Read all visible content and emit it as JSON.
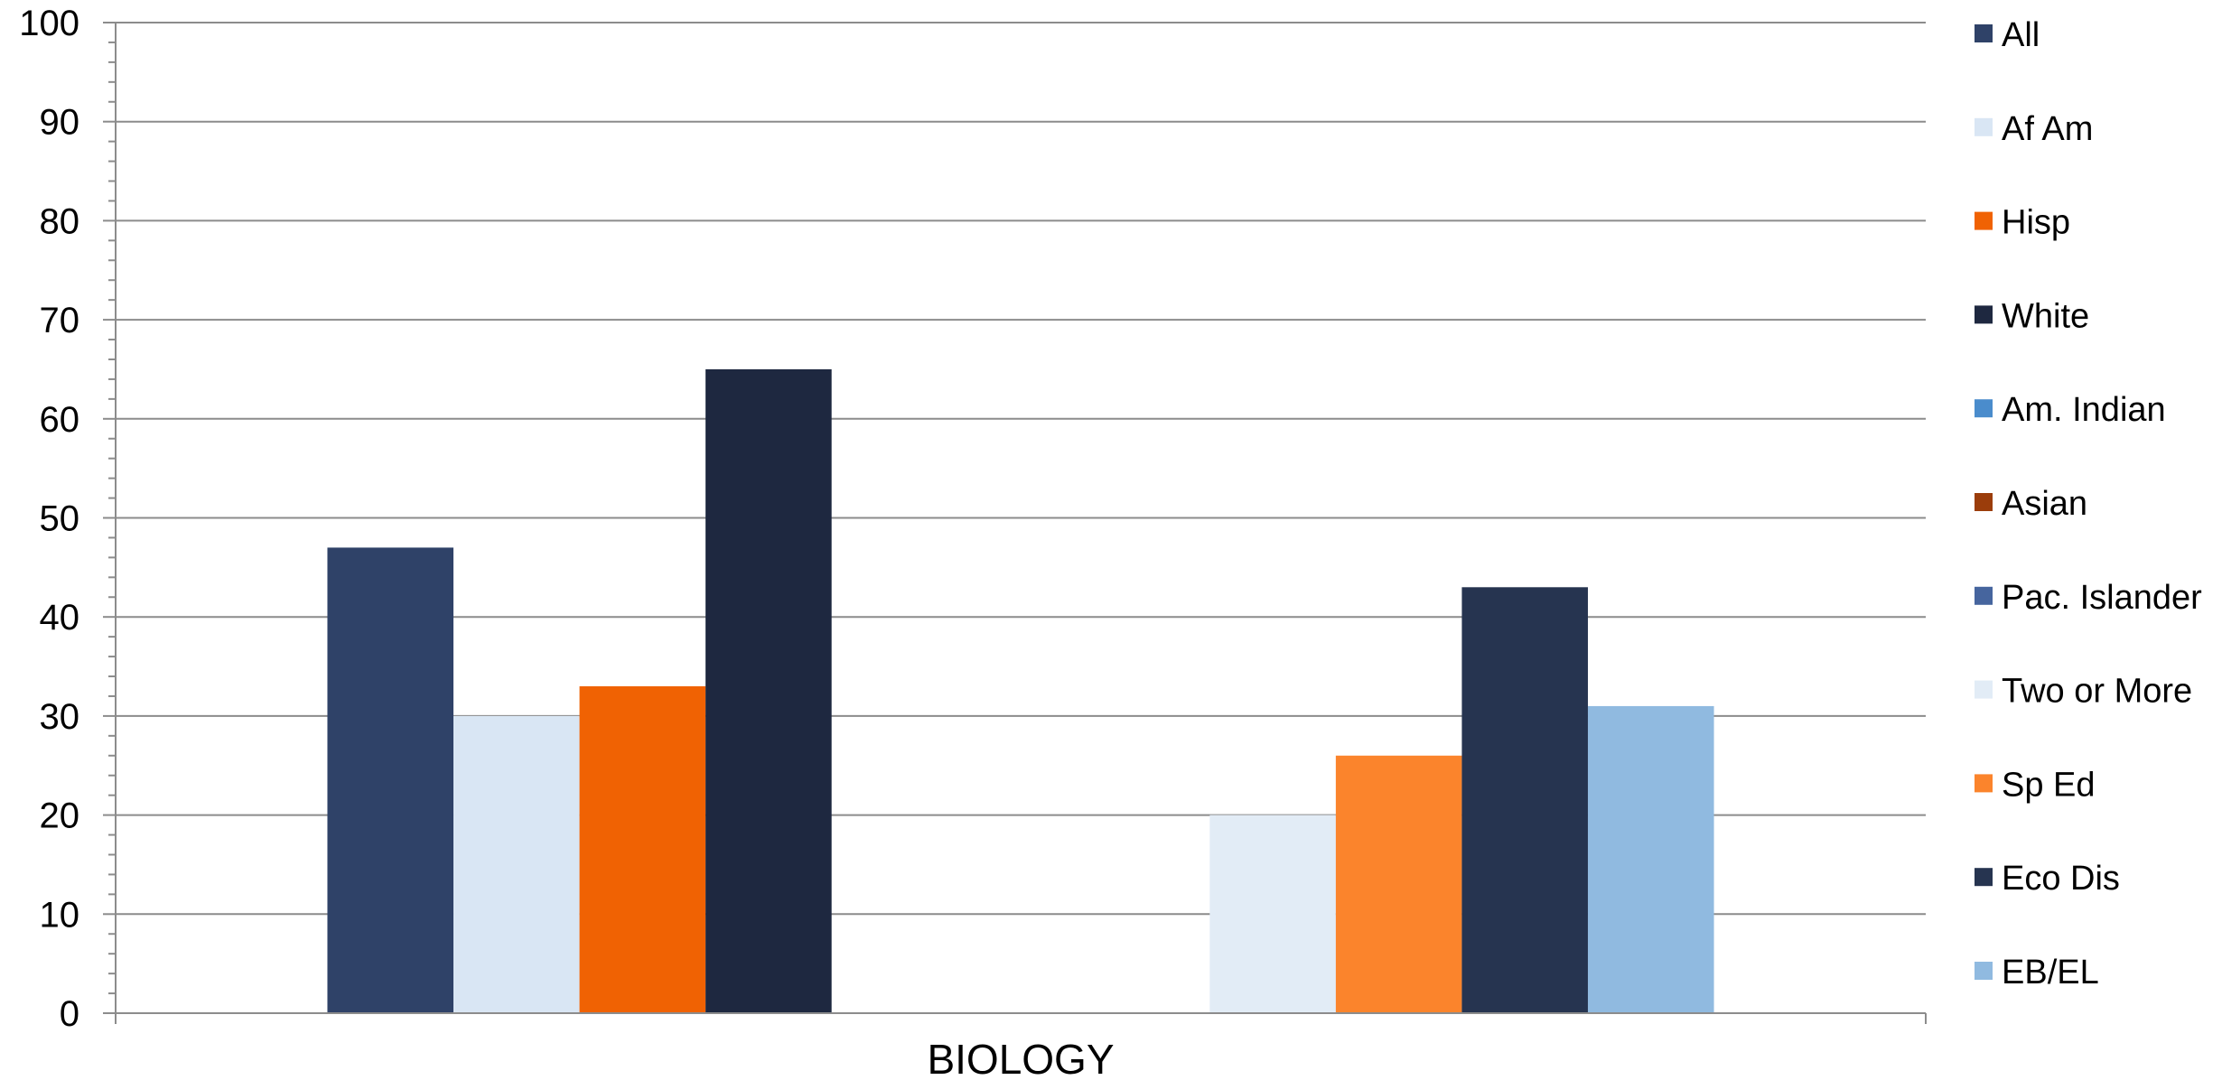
{
  "chart_data": {
    "type": "bar",
    "categories": [
      "BIOLOGY"
    ],
    "ylim": [
      0,
      100
    ],
    "y_ticks": [
      "0",
      "10",
      "20",
      "30",
      "40",
      "50",
      "60",
      "70",
      "80",
      "90",
      "100"
    ],
    "grid": true,
    "legend_position": "right",
    "series": [
      {
        "name": "All",
        "color": "#2f4268",
        "values": [
          47
        ]
      },
      {
        "name": "Af Am",
        "color": "#d9e6f4",
        "values": [
          30
        ]
      },
      {
        "name": "Hisp",
        "color": "#f06203",
        "values": [
          33
        ]
      },
      {
        "name": "White",
        "color": "#1e2840",
        "values": [
          65
        ]
      },
      {
        "name": "Am. Indian",
        "color": "#4a8ccc",
        "values": [
          0
        ]
      },
      {
        "name": "Asian",
        "color": "#9b3d0b",
        "values": [
          0
        ]
      },
      {
        "name": "Pac. Islander",
        "color": "#46659e",
        "values": [
          0
        ]
      },
      {
        "name": "Two or More",
        "color": "#e2ecf6",
        "values": [
          20
        ]
      },
      {
        "name": "Sp Ed",
        "color": "#fb842c",
        "values": [
          26
        ]
      },
      {
        "name": "Eco Dis",
        "color": "#263450",
        "values": [
          43
        ]
      },
      {
        "name": "EB/EL",
        "color": "#90bae0",
        "values": [
          31
        ]
      }
    ]
  }
}
